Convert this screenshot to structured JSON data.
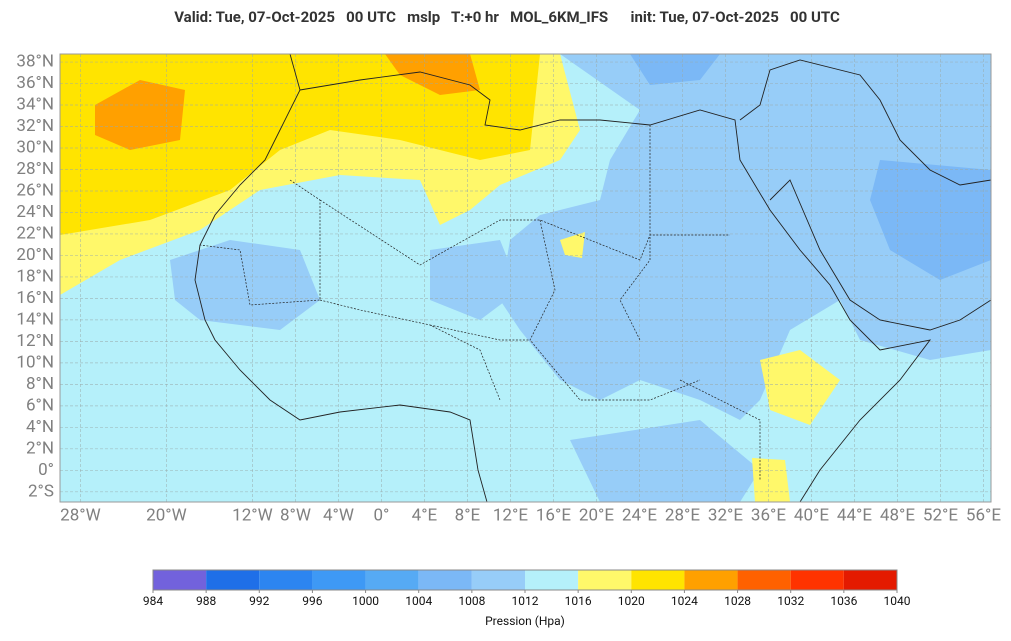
{
  "header": {
    "title": "Valid: Tue, 07-Oct-2025   00 UTC   mslp   T:+0 hr   MOL_6KM_IFS      init: Tue, 07-Oct-2025   00 UTC"
  },
  "map": {
    "lon_labels": [
      {
        "value": -28,
        "label": "28°W"
      },
      {
        "value": -20,
        "label": "20°W"
      },
      {
        "value": -12,
        "label": "12°W"
      },
      {
        "value": -8,
        "label": "8°W"
      },
      {
        "value": -4,
        "label": "4°W"
      },
      {
        "value": 0,
        "label": "0°"
      },
      {
        "value": 4,
        "label": "4°E"
      },
      {
        "value": 8,
        "label": "8°E"
      },
      {
        "value": 12,
        "label": "12°E"
      },
      {
        "value": 16,
        "label": "16°E"
      },
      {
        "value": 20,
        "label": "20°E"
      },
      {
        "value": 24,
        "label": "24°E"
      },
      {
        "value": 28,
        "label": "28°E"
      },
      {
        "value": 32,
        "label": "32°E"
      },
      {
        "value": 36,
        "label": "36°E"
      },
      {
        "value": 40,
        "label": "40°E"
      },
      {
        "value": 44,
        "label": "44°E"
      },
      {
        "value": 48,
        "label": "48°E"
      },
      {
        "value": 52,
        "label": "52°E"
      },
      {
        "value": 56,
        "label": "56°E"
      }
    ],
    "lat_labels": [
      {
        "value": 38,
        "label": "38°N"
      },
      {
        "value": 36,
        "label": "36°N"
      },
      {
        "value": 34,
        "label": "34°N"
      },
      {
        "value": 32,
        "label": "32°N"
      },
      {
        "value": 30,
        "label": "30°N"
      },
      {
        "value": 28,
        "label": "28°N"
      },
      {
        "value": 26,
        "label": "26°N"
      },
      {
        "value": 24,
        "label": "24°N"
      },
      {
        "value": 22,
        "label": "22°N"
      },
      {
        "value": 20,
        "label": "20°N"
      },
      {
        "value": 18,
        "label": "18°N"
      },
      {
        "value": 16,
        "label": "16°N"
      },
      {
        "value": 14,
        "label": "14°N"
      },
      {
        "value": 12,
        "label": "12°N"
      },
      {
        "value": 10,
        "label": "10°N"
      },
      {
        "value": 8,
        "label": "8°N"
      },
      {
        "value": 6,
        "label": "6°N"
      },
      {
        "value": 4,
        "label": "4°N"
      },
      {
        "value": 2,
        "label": "2°N"
      },
      {
        "value": 0,
        "label": "0°"
      },
      {
        "value": -2,
        "label": "2°S"
      }
    ]
  },
  "colorbar": {
    "levels": [
      984,
      988,
      992,
      996,
      1000,
      1004,
      1008,
      1012,
      1016,
      1020,
      1024,
      1028,
      1032,
      1036,
      1040
    ],
    "colors": [
      "#7262dc",
      "#1f6fe8",
      "#2c85f0",
      "#3e99f5",
      "#56aaf4",
      "#7bb8f6",
      "#97cdf8",
      "#b5f0fa",
      "#fff86a",
      "#ffe400",
      "#ffa000",
      "#ff6100",
      "#ff3300",
      "#e41a00"
    ],
    "label": "Pression (Hpa)"
  }
}
